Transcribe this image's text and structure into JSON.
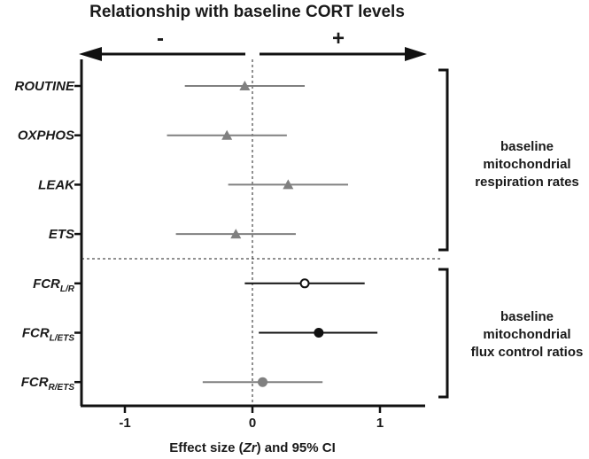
{
  "chart_data": {
    "type": "forest",
    "title": "Relationship with baseline CORT levels",
    "negative_label": "-",
    "positive_label": "+",
    "xlabel_prefix": "Effect size (",
    "xlabel_symbol": "Zr",
    "xlabel_suffix": ") and 95% CI",
    "xlim": [
      -1.35,
      1.35
    ],
    "xticks": [
      -1,
      0,
      1
    ],
    "xtick_labels": [
      "-1",
      "0",
      "1"
    ],
    "reference_line": 0,
    "rows": [
      {
        "label": "ROUTINE",
        "sub": "",
        "estimate": -0.06,
        "ci": [
          -0.53,
          0.41
        ],
        "marker": "triangle",
        "color": "#808080",
        "group": 0
      },
      {
        "label": "OXPHOS",
        "sub": "",
        "estimate": -0.2,
        "ci": [
          -0.67,
          0.27
        ],
        "marker": "triangle",
        "color": "#808080",
        "group": 0
      },
      {
        "label": "LEAK",
        "sub": "",
        "estimate": 0.28,
        "ci": [
          -0.19,
          0.75
        ],
        "marker": "triangle",
        "color": "#808080",
        "group": 0
      },
      {
        "label": "ETS",
        "sub": "",
        "estimate": -0.13,
        "ci": [
          -0.6,
          0.34
        ],
        "marker": "triangle",
        "color": "#808080",
        "group": 0
      },
      {
        "label": "FCR",
        "sub": "L/R",
        "estimate": 0.41,
        "ci": [
          -0.06,
          0.88
        ],
        "marker": "open-circle",
        "color": "#111111",
        "group": 1
      },
      {
        "label": "FCR",
        "sub": "L/ETS",
        "estimate": 0.52,
        "ci": [
          0.05,
          0.98
        ],
        "marker": "filled-circle",
        "color": "#111111",
        "group": 1
      },
      {
        "label": "FCR",
        "sub": "R/ETS",
        "estimate": 0.08,
        "ci": [
          -0.39,
          0.55
        ],
        "marker": "filled-circle",
        "color": "#808080",
        "group": 1
      }
    ],
    "groups": [
      {
        "lines": [
          "baseline",
          "mitochondrial",
          "respiration rates"
        ]
      },
      {
        "lines": [
          "baseline",
          "mitochondrial",
          "flux control ratios"
        ]
      }
    ]
  }
}
